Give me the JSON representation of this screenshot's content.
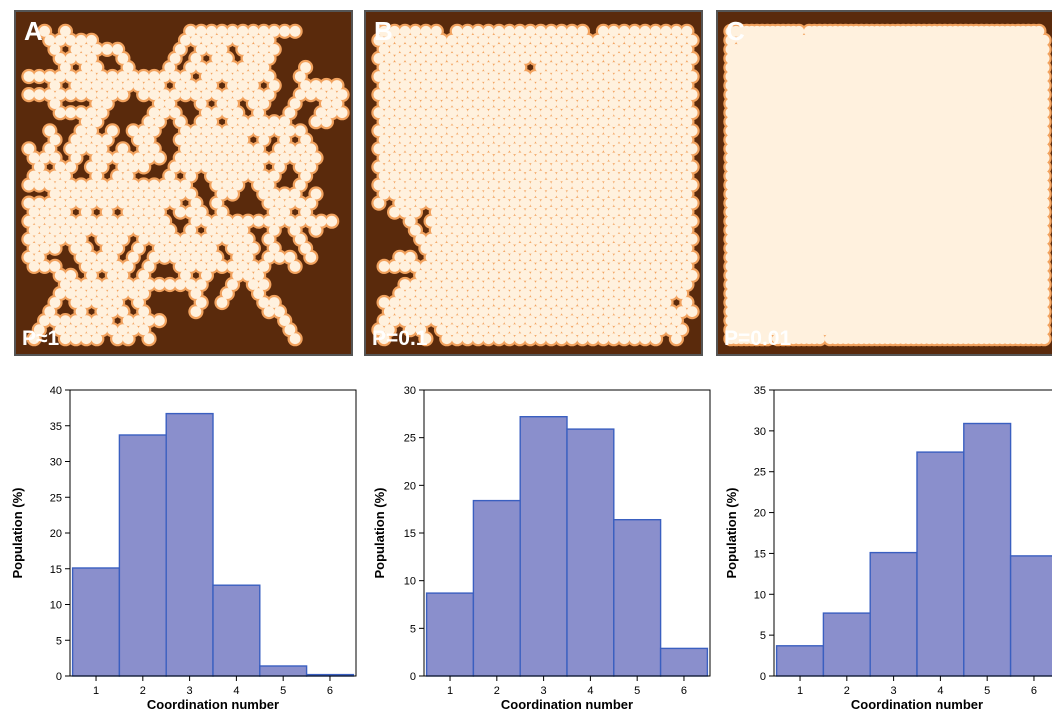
{
  "panels": [
    {
      "letter": "A",
      "p_label": "P≈1"
    },
    {
      "letter": "B",
      "p_label": "P=0.1"
    },
    {
      "letter": "C",
      "p_label": "P=0.01"
    }
  ],
  "colors": {
    "panel_background": "#5a2a0c",
    "cluster_glow": "#f2a25e",
    "cluster_fill": "#fff1de",
    "bar_fill": "#8a8fcc",
    "bar_stroke": "#3a5fc0"
  },
  "chart_data": [
    {
      "type": "bar",
      "categories": [
        "1",
        "2",
        "3",
        "4",
        "5",
        "6"
      ],
      "values": [
        15.1,
        33.7,
        36.7,
        12.7,
        1.4,
        0.2
      ],
      "xlabel": "Coordination number",
      "ylabel": "Population (%)",
      "ylim": [
        0,
        40
      ],
      "yticks": [
        "0",
        "5",
        "10",
        "15",
        "20",
        "25",
        "30",
        "35",
        "40"
      ],
      "grid": false
    },
    {
      "type": "bar",
      "categories": [
        "1",
        "2",
        "3",
        "4",
        "5",
        "6"
      ],
      "values": [
        8.7,
        18.4,
        27.2,
        25.9,
        16.4,
        2.9
      ],
      "xlabel": "Coordination number",
      "ylabel": "Population (%)",
      "ylim": [
        0,
        30
      ],
      "yticks": [
        "0",
        "5",
        "10",
        "15",
        "20",
        "25",
        "30"
      ],
      "grid": false
    },
    {
      "type": "bar",
      "categories": [
        "1",
        "2",
        "3",
        "4",
        "5",
        "6"
      ],
      "values": [
        3.7,
        7.7,
        15.1,
        27.4,
        30.9,
        14.7
      ],
      "xlabel": "Coordination number",
      "ylabel": "Population (%)",
      "ylim": [
        0,
        35
      ],
      "yticks": [
        "0",
        "5",
        "10",
        "15",
        "20",
        "25",
        "30",
        "35"
      ],
      "grid": false
    }
  ]
}
